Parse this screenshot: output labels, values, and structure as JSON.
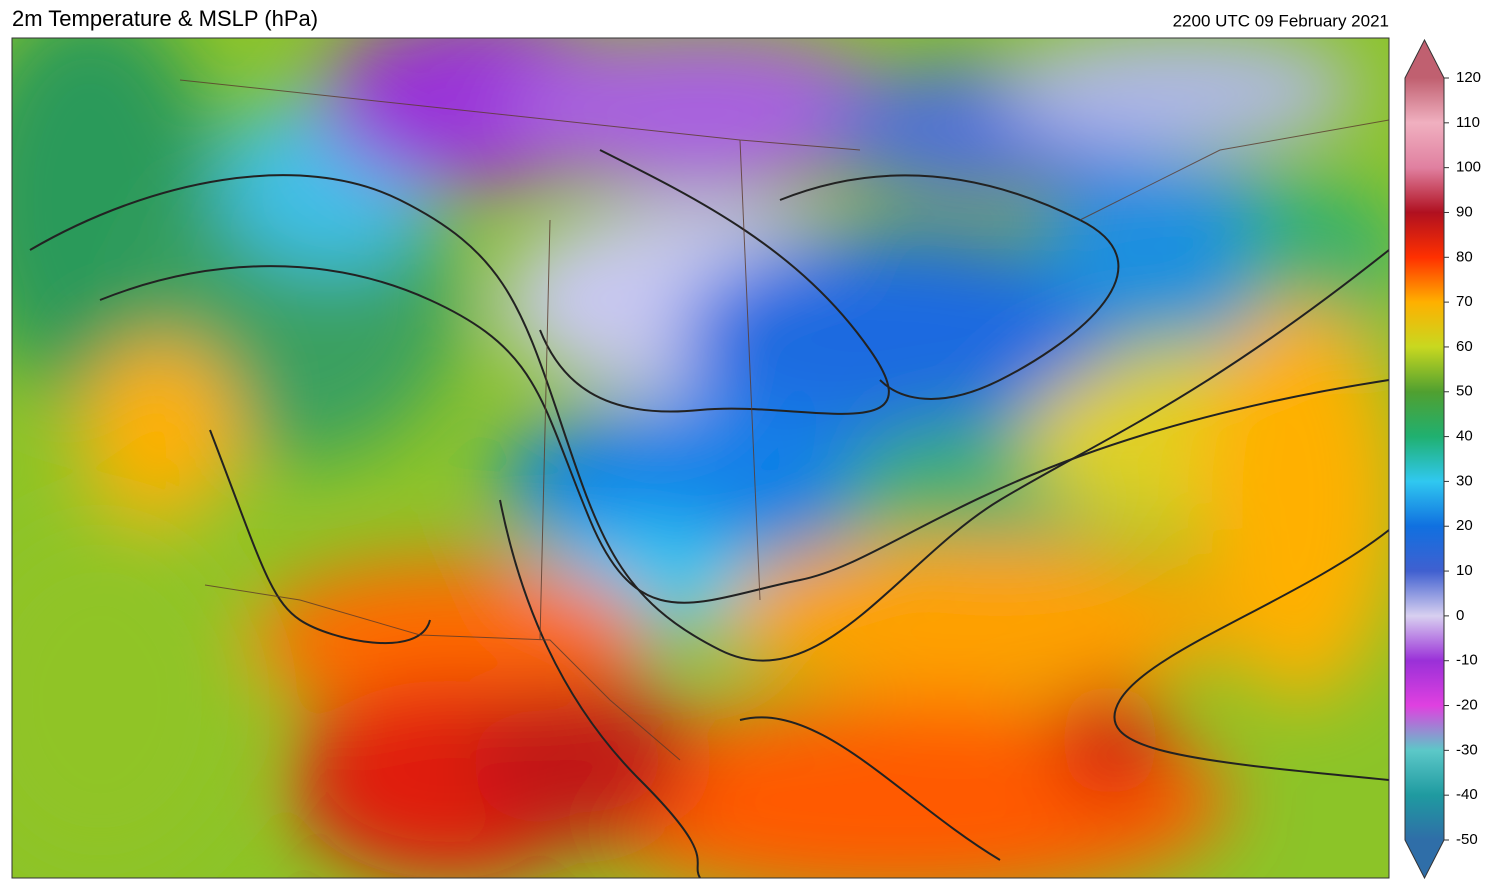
{
  "header": {
    "title": "2m Temperature & MSLP (hPa)",
    "valid_time": "2200 UTC 09 February 2021"
  },
  "colorbar": {
    "range": [
      -50,
      120
    ],
    "ticks": [
      -50,
      -40,
      -30,
      -20,
      -10,
      0,
      10,
      20,
      30,
      40,
      50,
      60,
      70,
      80,
      90,
      100,
      110,
      120
    ],
    "colors": [
      "#2f6ea8",
      "#1f9aa0",
      "#5cc8c8",
      "#e040e0",
      "#9a30d8",
      "#d8d0f0",
      "#4060d0",
      "#1070e0",
      "#30c8f0",
      "#20b070",
      "#50a030",
      "#c8d820",
      "#ffb000",
      "#ff3000",
      "#b01020",
      "#e080a0",
      "#f0b0c0",
      "#c06070"
    ]
  }
}
